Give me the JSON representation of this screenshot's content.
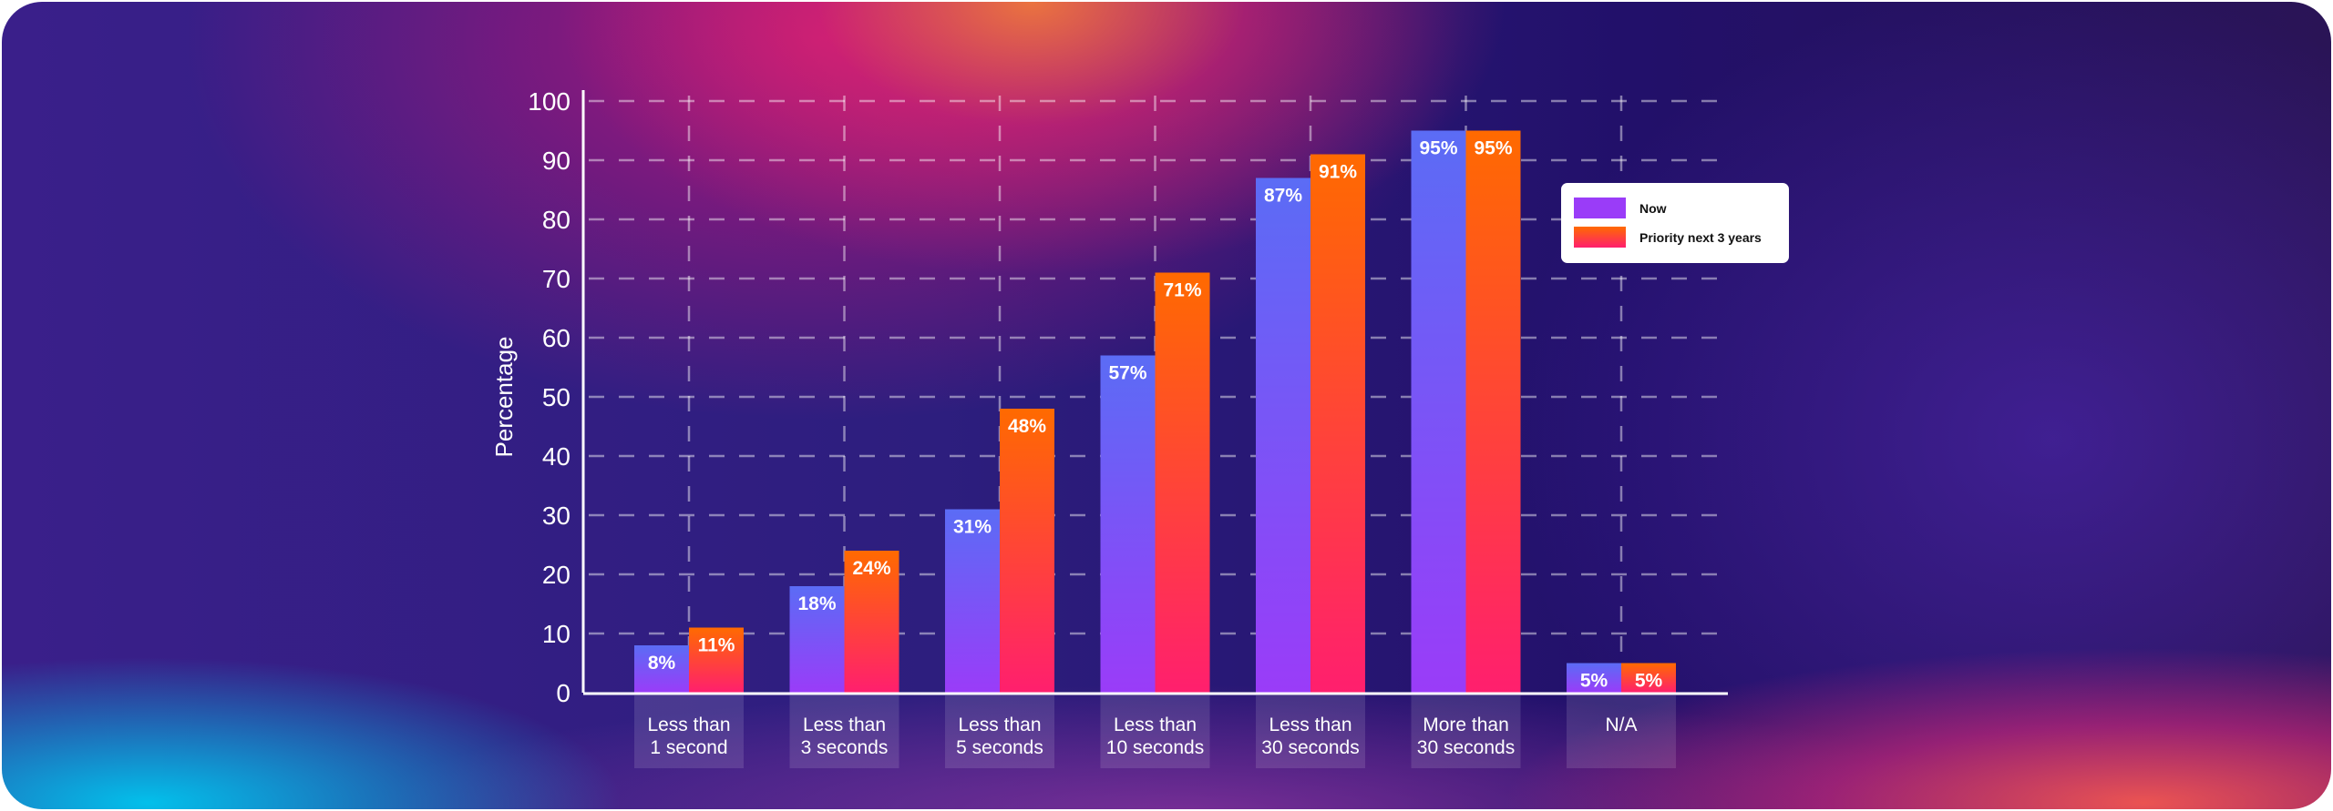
{
  "chart_data": {
    "type": "bar",
    "title": "",
    "xlabel": "",
    "ylabel": "Percentage",
    "ylim": [
      0,
      100
    ],
    "yticks": [
      0,
      10,
      20,
      30,
      40,
      50,
      60,
      70,
      80,
      90,
      100
    ],
    "grid": true,
    "legend_position": "top-right",
    "categories": [
      [
        "Less than",
        "1 second"
      ],
      [
        "Less than",
        "3 seconds"
      ],
      [
        "Less than",
        "5 seconds"
      ],
      [
        "Less than",
        "10 seconds"
      ],
      [
        "Less than",
        "30 seconds"
      ],
      [
        "More than",
        "30 seconds"
      ],
      [
        "N/A"
      ]
    ],
    "series": [
      {
        "name": "Now",
        "values": [
          8,
          18,
          31,
          57,
          87,
          95,
          5
        ],
        "labels": [
          "8%",
          "18%",
          "31%",
          "57%",
          "87%",
          "95%",
          "5%"
        ],
        "colors": [
          "#5b6cf5",
          "#9a3cf8"
        ]
      },
      {
        "name": "Priority next 3 years",
        "values": [
          11,
          24,
          48,
          71,
          91,
          95,
          5
        ],
        "labels": [
          "11%",
          "24%",
          "48%",
          "71%",
          "91%",
          "95%",
          "5%"
        ],
        "colors": [
          "#ff6a00",
          "#ff1f6e"
        ]
      }
    ]
  }
}
